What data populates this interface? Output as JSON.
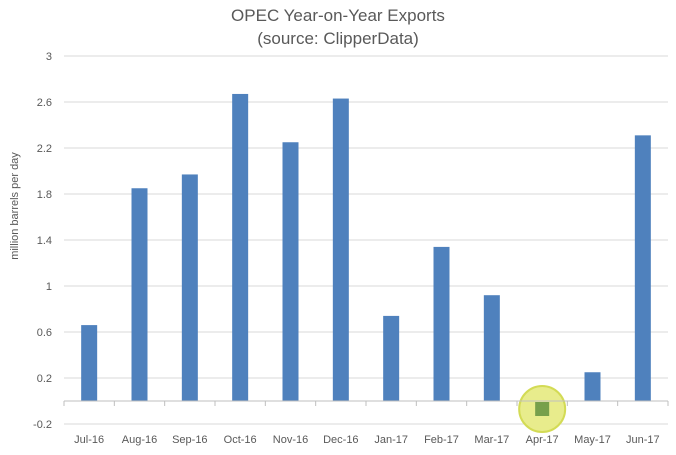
{
  "chart_data": {
    "type": "bar",
    "title_line1": "OPEC Year-on-Year Exports",
    "title_line2": "(source: ClipperData)",
    "xlabel": "",
    "ylabel": "million barrels per day",
    "ylim": [
      -0.2,
      3
    ],
    "yticks": [
      "-0.2",
      "0.2",
      "0.6",
      "1",
      "1.4",
      "1.8",
      "2.2",
      "2.6",
      "3"
    ],
    "ytick_values": [
      -0.2,
      0.2,
      0.6,
      1.0,
      1.4,
      1.8,
      2.2,
      2.6,
      3.0
    ],
    "grid": true,
    "legend": "none",
    "categories": [
      "Jul-16",
      "Aug-16",
      "Sep-16",
      "Oct-16",
      "Nov-16",
      "Dec-16",
      "Jan-17",
      "Feb-17",
      "Mar-17",
      "Apr-17",
      "May-17",
      "Jun-17"
    ],
    "values": [
      0.66,
      1.85,
      1.97,
      2.67,
      2.25,
      2.63,
      0.74,
      1.34,
      0.92,
      -0.12,
      0.25,
      2.31
    ],
    "bar_color": "#4f81bd",
    "highlight_category": "Apr-17",
    "highlight_fill": "#e8ec8c",
    "highlight_stroke": "#d3db55",
    "highlight_marker_color": "#77a04b"
  }
}
